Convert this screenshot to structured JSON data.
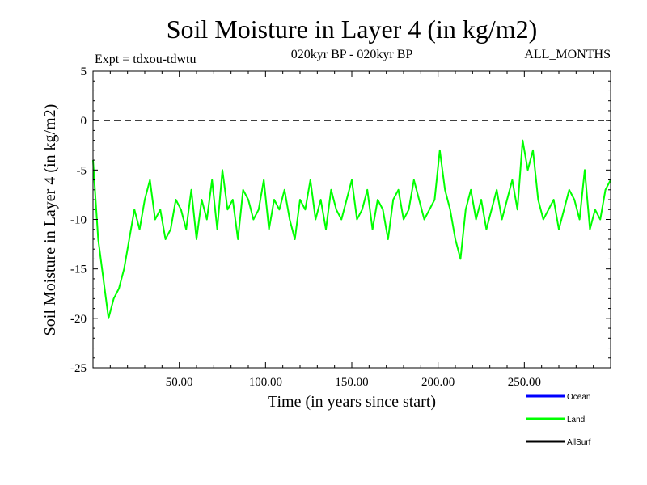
{
  "title": "Soil Moisture in Layer 4 (in kg/m2)",
  "subtitle_left": "Expt = tdxou-tdwtu",
  "subtitle_center": "020kyr BP - 020kyr BP",
  "subtitle_right": "ALL_MONTHS",
  "colors": {
    "ocean": "#0000ff",
    "land": "#00ff00",
    "allsurf": "#000000",
    "zero_line": "#000000"
  },
  "chart_data": {
    "type": "line",
    "title": "Soil Moisture in Layer 4 (in kg/m2)",
    "xlabel": "Time (in years since start)",
    "ylabel": "Soil Moisture in Layer 4 (in kg/m2)",
    "xlim": [
      0,
      300
    ],
    "ylim": [
      -25,
      5
    ],
    "x_ticks": [
      50,
      100,
      150,
      200,
      250
    ],
    "x_tick_labels": [
      "50.00",
      "100.00",
      "150.00",
      "200.00",
      "250.00"
    ],
    "y_ticks": [
      5,
      0,
      -5,
      -10,
      -15,
      -20,
      -25
    ],
    "y_tick_labels": [
      "5",
      "0",
      "-5",
      "-10",
      "-15",
      "-20",
      "-25"
    ],
    "reference_line": 0,
    "legend": [
      "Ocean",
      "Land",
      "AllSurf"
    ],
    "legend_position": "bottom-right",
    "series": [
      {
        "name": "Land",
        "color": "#00ff00",
        "x": [
          0,
          3,
          6,
          9,
          12,
          15,
          18,
          21,
          24,
          27,
          30,
          33,
          36,
          39,
          42,
          45,
          48,
          51,
          54,
          57,
          60,
          63,
          66,
          69,
          72,
          75,
          78,
          81,
          84,
          87,
          90,
          93,
          96,
          99,
          102,
          105,
          108,
          111,
          114,
          117,
          120,
          123,
          126,
          129,
          132,
          135,
          138,
          141,
          144,
          147,
          150,
          153,
          156,
          159,
          162,
          165,
          168,
          171,
          174,
          177,
          180,
          183,
          186,
          189,
          192,
          195,
          198,
          201,
          204,
          207,
          210,
          213,
          216,
          219,
          222,
          225,
          228,
          231,
          234,
          237,
          240,
          243,
          246,
          249,
          252,
          255,
          258,
          261,
          264,
          267,
          270,
          273,
          276,
          279,
          282,
          285,
          288,
          291,
          294,
          297,
          300
        ],
        "values": [
          -4,
          -12,
          -16,
          -20,
          -18,
          -17,
          -15,
          -12,
          -9,
          -11,
          -8,
          -6,
          -10,
          -9,
          -12,
          -11,
          -8,
          -9,
          -11,
          -7,
          -12,
          -8,
          -10,
          -6,
          -11,
          -5,
          -9,
          -8,
          -12,
          -7,
          -8,
          -10,
          -9,
          -6,
          -11,
          -8,
          -9,
          -7,
          -10,
          -12,
          -8,
          -9,
          -6,
          -10,
          -8,
          -11,
          -7,
          -9,
          -10,
          -8,
          -6,
          -10,
          -9,
          -7,
          -11,
          -8,
          -9,
          -12,
          -8,
          -7,
          -10,
          -9,
          -6,
          -8,
          -10,
          -9,
          -8,
          -3,
          -7,
          -9,
          -12,
          -14,
          -9,
          -7,
          -10,
          -8,
          -11,
          -9,
          -7,
          -10,
          -8,
          -6,
          -9,
          -2,
          -5,
          -3,
          -8,
          -10,
          -9,
          -8,
          -11,
          -9,
          -7,
          -8,
          -10,
          -5,
          -11,
          -9,
          -10,
          -7,
          -6
        ]
      },
      {
        "name": "Ocean",
        "color": "#0000ff",
        "x": [],
        "values": []
      },
      {
        "name": "AllSurf",
        "color": "#000000",
        "x": [],
        "values": []
      }
    ]
  }
}
